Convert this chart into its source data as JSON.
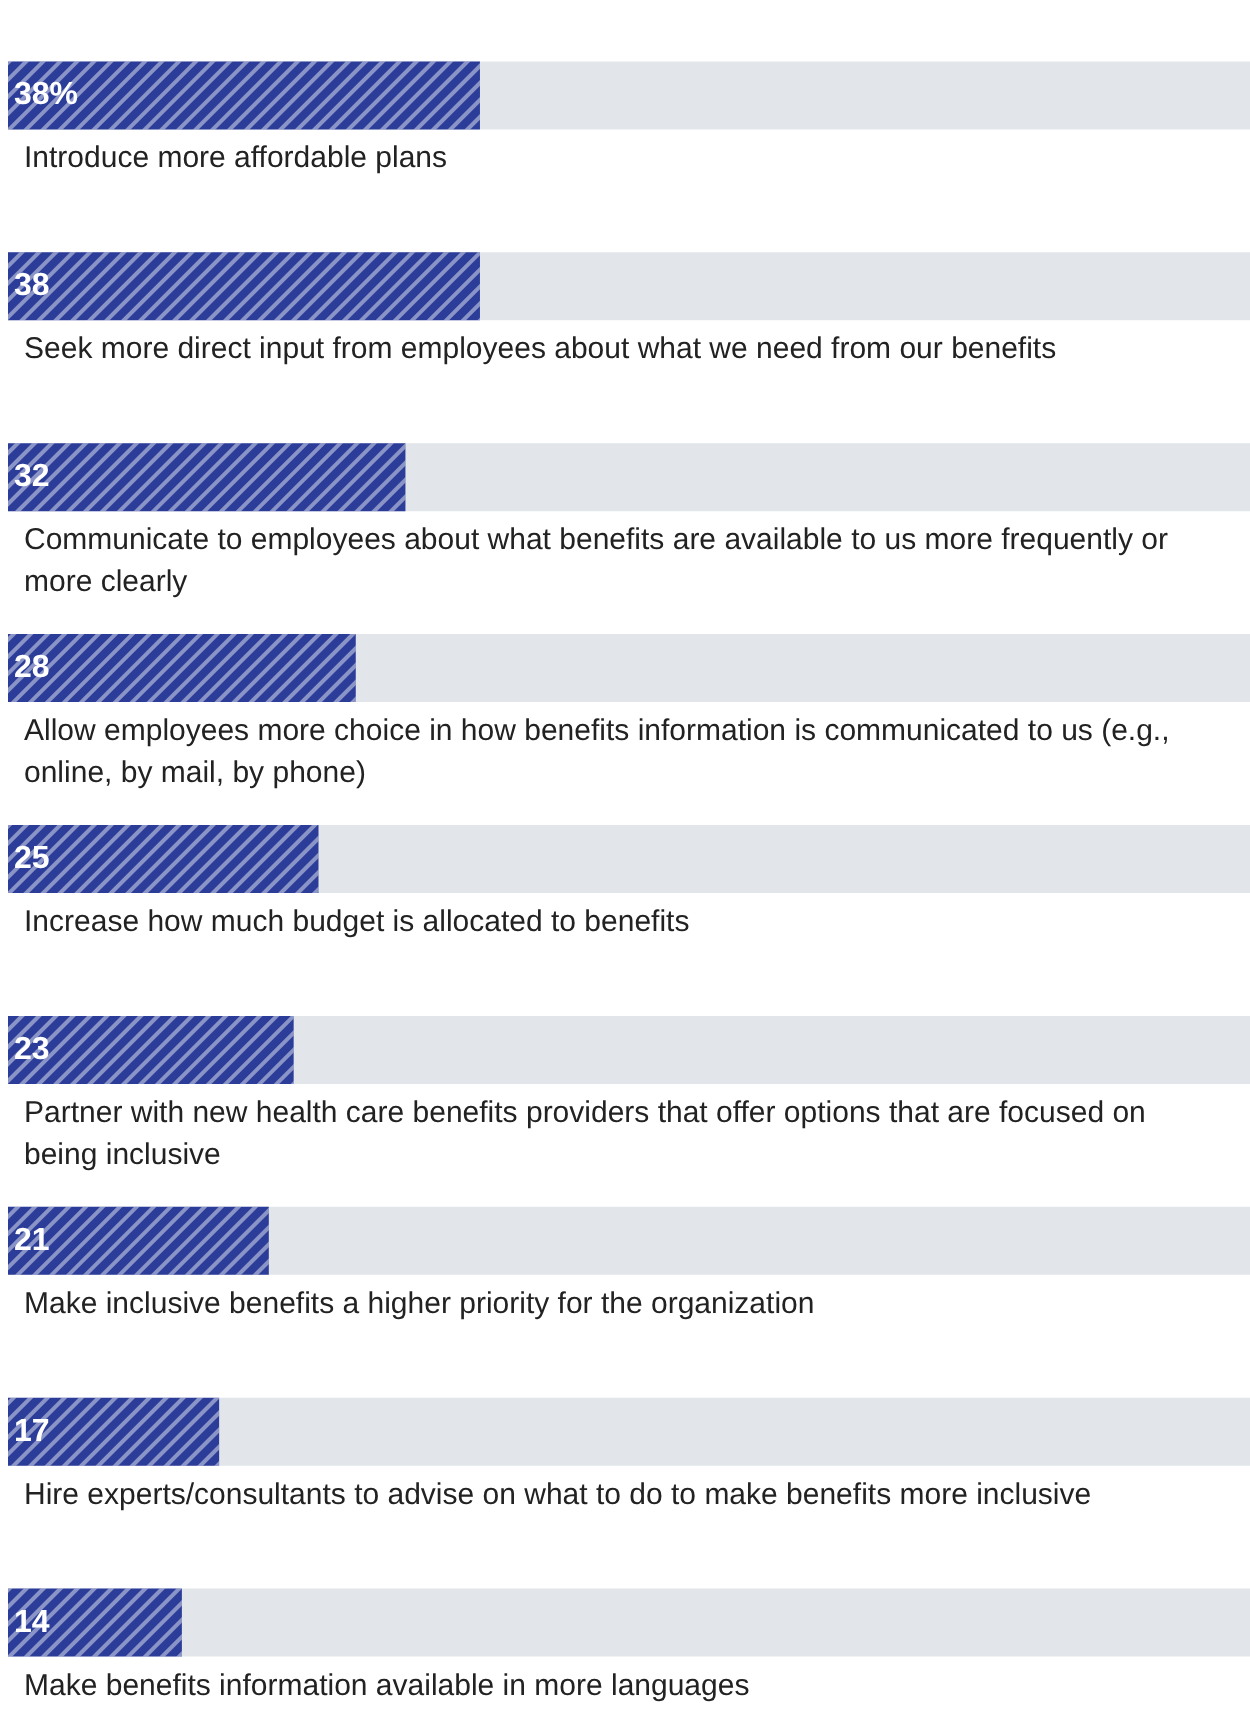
{
  "chart_data": {
    "type": "bar",
    "orientation": "horizontal",
    "categories": [
      "Introduce more affordable plans",
      "Seek more direct input from employees about what we need from our benefits",
      "Communicate to employees about what benefits are available to us more frequently or more clearly",
      "Allow employees more choice in how benefits information is communicated to us (e.g., online, by mail, by phone)",
      "Increase how much budget is allocated to benefits",
      "Partner with new health care benefits providers that offer options that are focused on being inclusive",
      "Make inclusive benefits a higher priority for the organization",
      "Hire experts/consultants to advise on what to do to make benefits more inclusive",
      "Make benefits information available in more languages"
    ],
    "values": [
      38,
      38,
      32,
      28,
      25,
      23,
      21,
      17,
      14
    ],
    "value_labels": [
      "38%",
      "38",
      "32",
      "28",
      "25",
      "23",
      "21",
      "17",
      "14"
    ],
    "color": "#2b3d99",
    "xlim": [
      0,
      100
    ],
    "tick_labels": false
  }
}
